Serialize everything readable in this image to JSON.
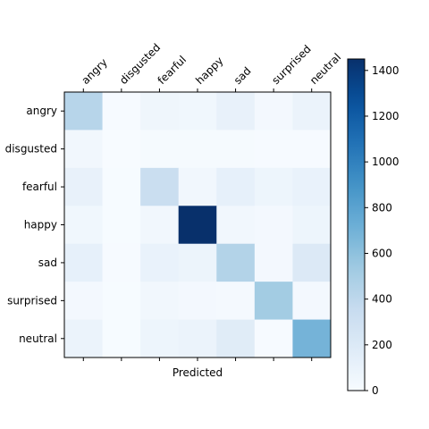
{
  "chart_data": {
    "type": "heatmap",
    "title": "",
    "xlabel": "Predicted",
    "ylabel": "",
    "rows": [
      "angry",
      "disgusted",
      "fearful",
      "happy",
      "sad",
      "surprised",
      "neutral"
    ],
    "columns": [
      "angry",
      "disgusted",
      "fearful",
      "happy",
      "sad",
      "surprised",
      "neutral"
    ],
    "values": [
      [
        430,
        10,
        60,
        50,
        110,
        30,
        90
      ],
      [
        40,
        2,
        15,
        12,
        14,
        10,
        10
      ],
      [
        110,
        5,
        330,
        40,
        120,
        70,
        100
      ],
      [
        50,
        5,
        40,
        1450,
        40,
        30,
        70
      ],
      [
        120,
        10,
        100,
        80,
        450,
        30,
        200
      ],
      [
        30,
        5,
        40,
        30,
        20,
        520,
        30
      ],
      [
        90,
        5,
        70,
        90,
        170,
        10,
        690
      ]
    ],
    "colorbar": {
      "min": 0,
      "max": 1450,
      "ticks": [
        "0",
        "200",
        "400",
        "600",
        "800",
        "1000",
        "1200",
        "1400"
      ],
      "colormap": "Blues"
    }
  }
}
